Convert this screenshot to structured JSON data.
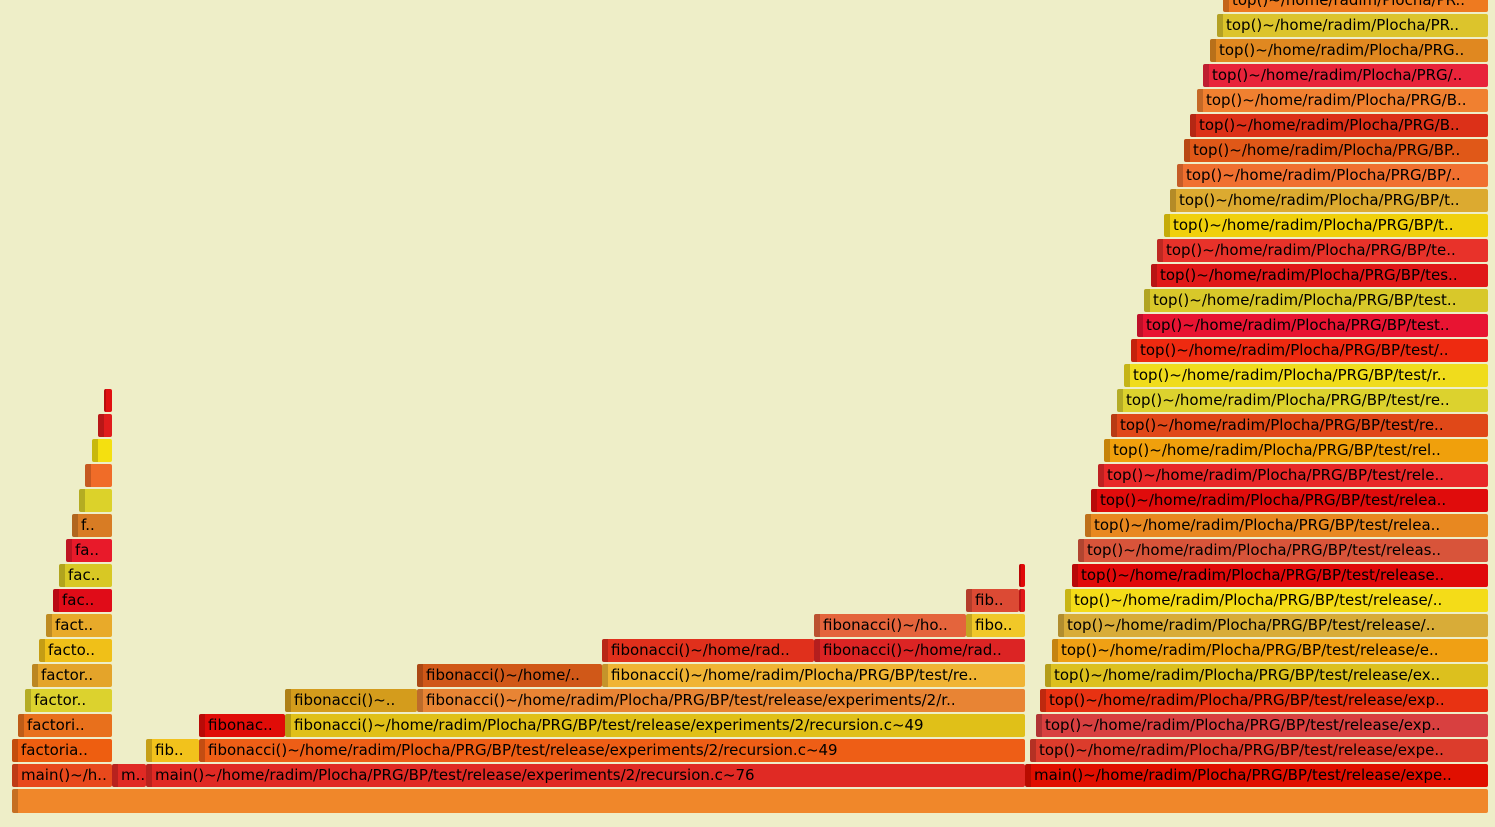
{
  "frames": [
    {
      "label": "",
      "color": "#f0872a"
    },
    {
      "label": "main()~/h..",
      "color": "#e8491c"
    },
    {
      "label": "m..",
      "color": "#e02a24"
    },
    {
      "label": "main()~/home/radim/Plocha/PRG/BP/test/release/experiments/2/recursion.c~76",
      "color": "#e02a24"
    },
    {
      "label": "main()~/home/radim/Plocha/PRG/BP/test/release/expe..",
      "color": "#e00f00"
    },
    {
      "label": "factoria..",
      "color": "#ee5e10"
    },
    {
      "label": "fib..",
      "color": "#f2c21c"
    },
    {
      "label": "fibonacci()~/home/radim/Plocha/PRG/BP/test/release/experiments/2/recursion.c~49",
      "color": "#ee5e16"
    },
    {
      "label": "top()~/home/radim/Plocha/PRG/BP/test/release/expe..",
      "color": "#dc3c2c"
    },
    {
      "label": "factori..",
      "color": "#e8701c"
    },
    {
      "label": "fibonac..",
      "color": "#e00c08"
    },
    {
      "label": "fibonacci()~/home/radim/Plocha/PRG/BP/test/release/experiments/2/recursion.c~49",
      "color": "#e0c018"
    },
    {
      "label": "top()~/home/radim/Plocha/PRG/BP/test/release/exp..",
      "color": "#d84040"
    },
    {
      "label": "factor..",
      "color": "#dcd22e"
    },
    {
      "label": "fibonacci()~..",
      "color": "#d49c1c"
    },
    {
      "label": "fibonacci()~/home/radim/Plocha/PRG/BP/test/release/experiments/2/r..",
      "color": "#e88434"
    },
    {
      "label": "top()~/home/radim/Plocha/PRG/BP/test/release/exp..",
      "color": "#e83212"
    },
    {
      "label": "factor..",
      "color": "#e4a42a"
    },
    {
      "label": "fibonacci()~/home/..",
      "color": "#d05818"
    },
    {
      "label": "fibonacci()~/home/radim/Plocha/PRG/BP/test/re..",
      "color": "#f0b434"
    },
    {
      "label": "top()~/home/radim/Plocha/PRG/BP/test/release/ex..",
      "color": "#dcc01e"
    },
    {
      "label": "facto..",
      "color": "#f0c018"
    },
    {
      "label": "fibonacci()~/home/rad..",
      "color": "#e0301c"
    },
    {
      "label": "fibonacci()~/home/rad..",
      "color": "#dc2424"
    },
    {
      "label": "top()~/home/radim/Plocha/PRG/BP/test/release/e..",
      "color": "#f0a014"
    },
    {
      "label": "fact..",
      "color": "#e8aa2a"
    },
    {
      "label": "fibonacci()~/ho..",
      "color": "#e4643c"
    },
    {
      "label": "fibo..",
      "color": "#f0c828"
    },
    {
      "label": "top()~/home/radim/Plocha/PRG/BP/test/release/..",
      "color": "#d8ac38"
    },
    {
      "label": "fac..",
      "color": "#e00c18"
    },
    {
      "label": "fib..",
      "color": "#dc4a34"
    },
    {
      "label": "",
      "color": "#e01818"
    },
    {
      "label": "top()~/home/radim/Plocha/PRG/BP/test/release/..",
      "color": "#f4dc18"
    },
    {
      "label": "fac..",
      "color": "#d8c824"
    },
    {
      "label": "",
      "color": "#e00808"
    },
    {
      "label": "top()~/home/radim/Plocha/PRG/BP/test/release..",
      "color": "#e00a0a"
    },
    {
      "label": "fa..",
      "color": "#e81a2a"
    },
    {
      "label": "top()~/home/radim/Plocha/PRG/BP/test/releas..",
      "color": "#d8543a"
    },
    {
      "label": "f..",
      "color": "#d87c24"
    },
    {
      "label": "top()~/home/radim/Plocha/PRG/BP/test/relea..",
      "color": "#e88820"
    },
    {
      "label": "",
      "color": "#dcd22a"
    },
    {
      "label": "top()~/home/radim/Plocha/PRG/BP/test/relea..",
      "color": "#e00c0c"
    },
    {
      "label": "",
      "color": "#f06c28"
    },
    {
      "label": "top()~/home/radim/Plocha/PRG/BP/test/rele..",
      "color": "#e82828"
    },
    {
      "label": "",
      "color": "#f4e010"
    },
    {
      "label": "top()~/home/radim/Plocha/PRG/BP/test/rel..",
      "color": "#f0a00c"
    },
    {
      "label": "",
      "color": "#e01c1c"
    },
    {
      "label": "top()~/home/radim/Plocha/PRG/BP/test/re..",
      "color": "#e04818"
    },
    {
      "label": "",
      "color": "#e01010"
    },
    {
      "label": "top()~/home/radim/Plocha/PRG/BP/test/re..",
      "color": "#dcd22e"
    },
    {
      "label": "top()~/home/radim/Plocha/PRG/BP/test/r..",
      "color": "#f0dc1c"
    },
    {
      "label": "top()~/home/radim/Plocha/PRG/BP/test/..",
      "color": "#ee2a10"
    },
    {
      "label": "top()~/home/radim/Plocha/PRG/BP/test..",
      "color": "#e81432"
    },
    {
      "label": "top()~/home/radim/Plocha/PRG/BP/test..",
      "color": "#d8c82a"
    },
    {
      "label": "top()~/home/radim/Plocha/PRG/BP/tes..",
      "color": "#e01818"
    },
    {
      "label": "top()~/home/radim/Plocha/PRG/BP/te..",
      "color": "#e8322a"
    },
    {
      "label": "top()~/home/radim/Plocha/PRG/BP/t..",
      "color": "#f0d00c"
    },
    {
      "label": "top()~/home/radim/Plocha/PRG/BP/t..",
      "color": "#dcaa30"
    },
    {
      "label": "top()~/home/radim/Plocha/PRG/BP/..",
      "color": "#f07030"
    },
    {
      "label": "top()~/home/radim/Plocha/PRG/BP..",
      "color": "#e05818"
    },
    {
      "label": "top()~/home/radim/Plocha/PRG/B..",
      "color": "#dc3018"
    },
    {
      "label": "top()~/home/radim/Plocha/PRG/B..",
      "color": "#f08030"
    },
    {
      "label": "top()~/home/radim/Plocha/PRG/..",
      "color": "#e8243a"
    },
    {
      "label": "top()~/home/radim/Plocha/PRG..",
      "color": "#e08820"
    },
    {
      "label": "top()~/home/radim/Plocha/PR..",
      "color": "#dcc42c"
    },
    {
      "label": "top()~/home/radim/Plocha/PR..",
      "color": "#ee7a20"
    }
  ]
}
